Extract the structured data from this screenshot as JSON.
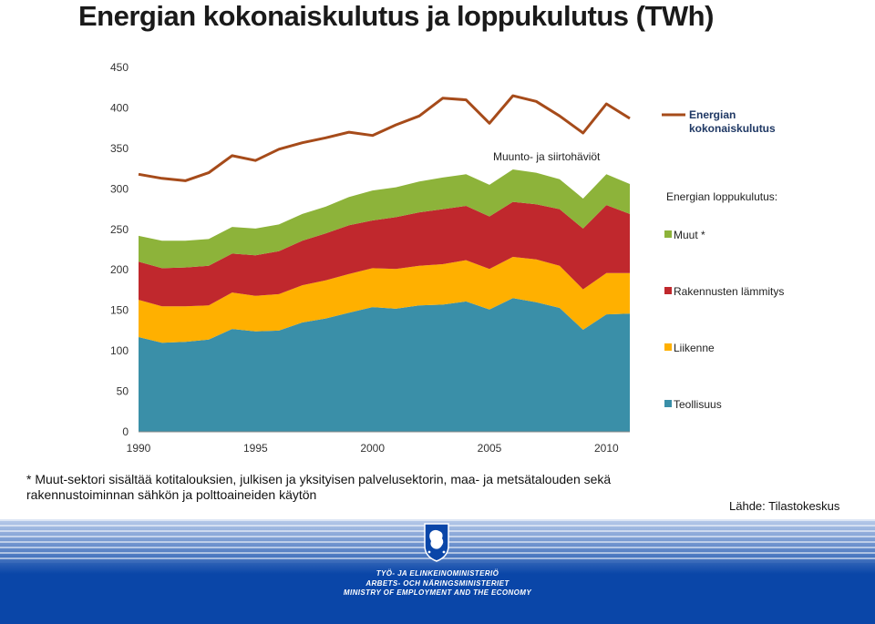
{
  "title": "Energian kokonaiskulutus ja loppukulutus (TWh)",
  "chart_data": {
    "type": "area",
    "x": [
      1990,
      1991,
      1992,
      1993,
      1994,
      1995,
      1996,
      1997,
      1998,
      1999,
      2000,
      2001,
      2002,
      2003,
      2004,
      2005,
      2006,
      2007,
      2008,
      2009,
      2010,
      2011
    ],
    "stacked_series": [
      {
        "name": "Teollisuus",
        "color": "#3a8fa8",
        "values": [
          117,
          110,
          111,
          114,
          127,
          124,
          125,
          135,
          140,
          147,
          154,
          152,
          156,
          157,
          161,
          151,
          165,
          160,
          153,
          126,
          145,
          146
        ]
      },
      {
        "name": "Liikenne",
        "color": "#ffb000",
        "values": [
          46,
          45,
          44,
          42,
          45,
          44,
          45,
          46,
          47,
          48,
          48,
          49,
          49,
          50,
          51,
          50,
          51,
          53,
          52,
          50,
          51,
          50
        ]
      },
      {
        "name": "Rakennusten  lämmitys",
        "color": "#c0282d",
        "values": [
          47,
          47,
          48,
          49,
          48,
          50,
          53,
          55,
          58,
          60,
          59,
          64,
          66,
          68,
          67,
          65,
          68,
          68,
          70,
          75,
          84,
          73
        ]
      },
      {
        "name": "Muut *",
        "color": "#8db33a",
        "values": [
          32,
          34,
          33,
          33,
          33,
          33,
          33,
          33,
          33,
          35,
          37,
          37,
          38,
          39,
          39,
          39,
          40,
          39,
          37,
          37,
          38,
          37
        ]
      }
    ],
    "line_series": [
      {
        "name": "Energian kokonaiskulutus",
        "color": "#a64b1a",
        "values": [
          318,
          313,
          310,
          320,
          341,
          335,
          349,
          357,
          363,
          370,
          366,
          379,
          390,
          412,
          410,
          381,
          415,
          408,
          390,
          369,
          405,
          387
        ]
      }
    ],
    "x_ticks": [
      1990,
      1995,
      2000,
      2005,
      2010
    ],
    "y_ticks": [
      0,
      50,
      100,
      150,
      200,
      250,
      300,
      350,
      400,
      450
    ],
    "ylim": [
      0,
      450
    ],
    "annotation": "Muunto- ja siirtohäviöt",
    "legend_heading": "Energian loppukulutus:",
    "legend_position": "right"
  },
  "footnote": {
    "line1": "* Muut-sektori sisältää kotitalouksien, julkisen ja yksityisen palvelusektorin, maa- ja metsätalouden sekä",
    "line2": "rakennustoiminnan sähkön ja polttoaineiden käytön"
  },
  "source": "Lähde: Tilastokeskus",
  "footer": {
    "line_fi": "TYÖ- JA ELINKEINOMINISTERIÖ",
    "line_sv": "ARBETS- OCH NÄRINGSMINISTERIET",
    "line_en": "MINISTRY OF EMPLOYMENT AND THE ECONOMY"
  },
  "colors": {
    "footer_blue": "#0a46a8",
    "title": "#1a1a1a"
  }
}
